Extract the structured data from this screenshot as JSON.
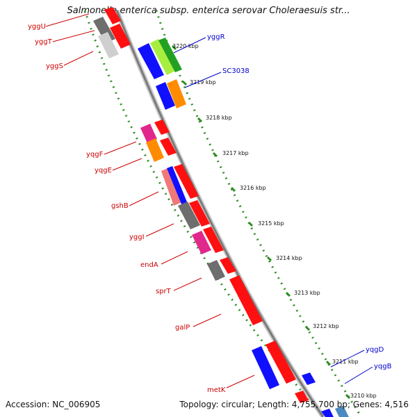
{
  "title": "Salmonella enterica subsp. enterica serovar Choleraesuis str...",
  "footer": {
    "accession": "Accession: NC_006905",
    "topology": "Topology: circular; Length: 4,755,700 bp; Genes: 4,516"
  },
  "colors": {
    "forward_label": "#cc0000",
    "reverse_label": "#0000cc",
    "backbone": "#7a7a7a",
    "tick_dots": "#2e8b22"
  },
  "scale_ticks": [
    "3220 kbp",
    "3219 kbp",
    "3218 kbp",
    "3217 kbp",
    "3216 kbp",
    "3215 kbp",
    "3214 kbp",
    "3213 kbp",
    "3212 kbp",
    "3211 kbp",
    "3210 kbp"
  ],
  "left_genes": [
    "yggU",
    "yggT",
    "yggS",
    "yqgF",
    "yqgE",
    "gshB",
    "yggI",
    "endA",
    "sprT",
    "galP",
    "metK"
  ],
  "right_genes": [
    "yggR",
    "SC3038",
    "yqgD",
    "yqgB"
  ]
}
